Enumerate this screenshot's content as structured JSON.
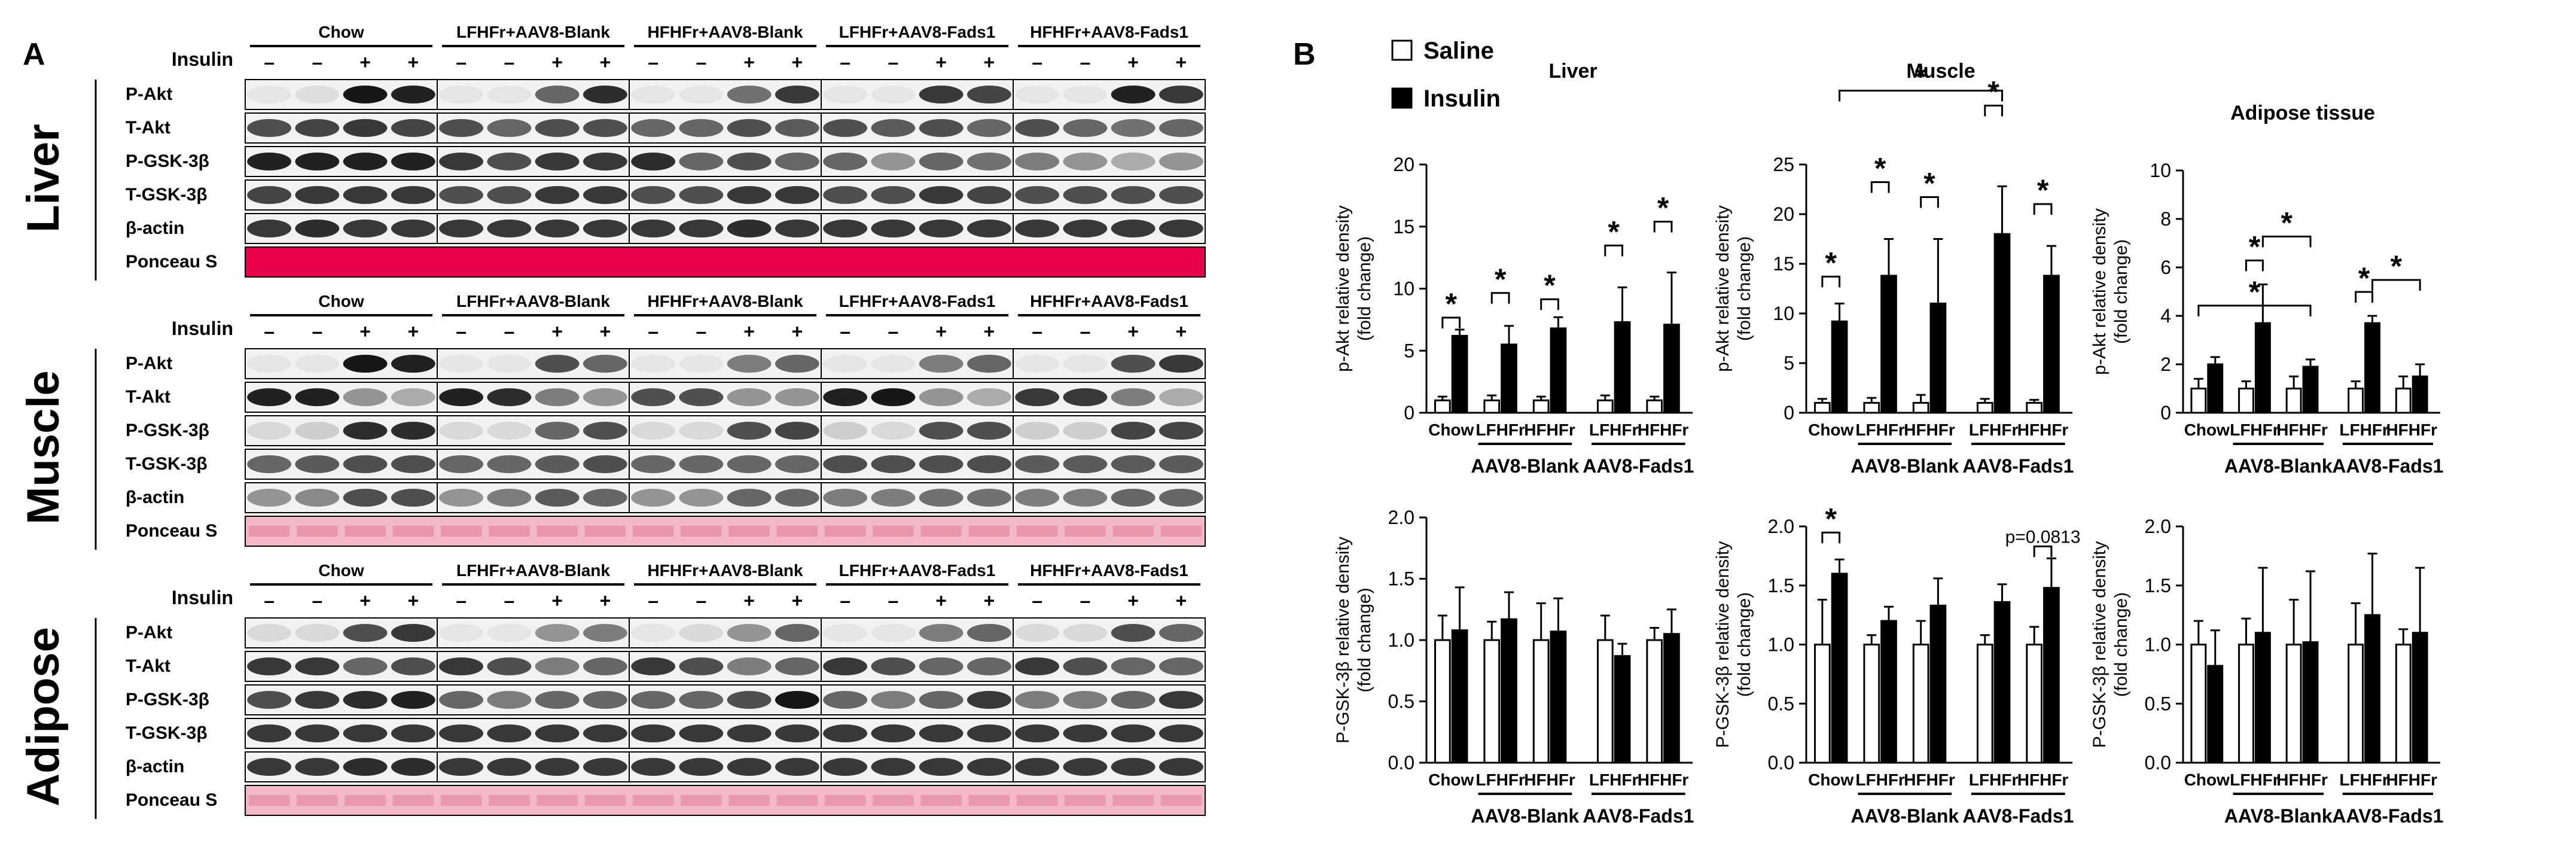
{
  "panelA": {
    "letter": "A",
    "insulin_label": "Insulin",
    "signs": [
      "–",
      "–",
      "+",
      "+",
      "–",
      "–",
      "+",
      "+",
      "–",
      "–",
      "+",
      "+",
      "–",
      "–",
      "+",
      "+",
      "–",
      "–",
      "+",
      "+"
    ],
    "groups": [
      "Chow",
      "LFHFr+AAV8-Blank",
      "HFHFr+AAV8-Blank",
      "LFHFr+AAV8-Fads1",
      "HFHFr+AAV8-Fads1"
    ],
    "ponceau_color": "#e8004a",
    "tissues": [
      {
        "name": "Liver",
        "bands": [
          "P-Akt",
          "T-Akt",
          "P-GSK-3β",
          "T-GSK-3β",
          "β-actin",
          "Ponceau S"
        ],
        "intensities": [
          [
            0.05,
            0.08,
            0.95,
            0.9,
            0.05,
            0.05,
            0.6,
            0.85,
            0.05,
            0.05,
            0.55,
            0.8,
            0.05,
            0.05,
            0.8,
            0.75,
            0.05,
            0.05,
            0.9,
            0.8
          ],
          [
            0.7,
            0.75,
            0.8,
            0.75,
            0.7,
            0.6,
            0.7,
            0.7,
            0.6,
            0.6,
            0.7,
            0.65,
            0.7,
            0.65,
            0.7,
            0.6,
            0.7,
            0.6,
            0.55,
            0.6
          ],
          [
            0.9,
            0.9,
            0.9,
            0.9,
            0.8,
            0.7,
            0.8,
            0.8,
            0.85,
            0.6,
            0.7,
            0.6,
            0.6,
            0.4,
            0.6,
            0.55,
            0.5,
            0.4,
            0.3,
            0.4
          ],
          [
            0.75,
            0.8,
            0.8,
            0.8,
            0.7,
            0.7,
            0.8,
            0.8,
            0.7,
            0.7,
            0.8,
            0.8,
            0.7,
            0.7,
            0.8,
            0.75,
            0.7,
            0.7,
            0.7,
            0.7
          ],
          [
            0.8,
            0.85,
            0.8,
            0.8,
            0.8,
            0.8,
            0.8,
            0.8,
            0.8,
            0.8,
            0.85,
            0.8,
            0.8,
            0.8,
            0.8,
            0.8,
            0.8,
            0.8,
            0.8,
            0.8
          ],
          [
            1,
            1,
            1,
            1,
            1,
            1,
            1,
            1,
            1,
            1,
            1,
            1,
            1,
            1,
            1,
            1,
            1,
            1,
            1,
            1
          ]
        ]
      },
      {
        "name": "Muscle",
        "bands": [
          "P-Akt",
          "T-Akt",
          "P-GSK-3β",
          "T-GSK-3β",
          "β-actin",
          "Ponceau S"
        ],
        "intensities": [
          [
            0.05,
            0.05,
            0.95,
            0.9,
            0.05,
            0.05,
            0.7,
            0.6,
            0.05,
            0.05,
            0.5,
            0.6,
            0.05,
            0.05,
            0.5,
            0.6,
            0.05,
            0.05,
            0.7,
            0.8
          ],
          [
            0.9,
            0.9,
            0.4,
            0.3,
            0.9,
            0.85,
            0.5,
            0.4,
            0.7,
            0.7,
            0.4,
            0.4,
            0.9,
            0.95,
            0.4,
            0.3,
            0.8,
            0.8,
            0.5,
            0.3
          ],
          [
            0.1,
            0.15,
            0.85,
            0.85,
            0.1,
            0.1,
            0.6,
            0.7,
            0.1,
            0.1,
            0.7,
            0.75,
            0.15,
            0.1,
            0.7,
            0.7,
            0.15,
            0.15,
            0.75,
            0.75
          ],
          [
            0.6,
            0.65,
            0.7,
            0.7,
            0.6,
            0.6,
            0.65,
            0.7,
            0.6,
            0.6,
            0.6,
            0.6,
            0.7,
            0.7,
            0.7,
            0.7,
            0.65,
            0.65,
            0.65,
            0.65
          ],
          [
            0.4,
            0.45,
            0.7,
            0.7,
            0.4,
            0.5,
            0.65,
            0.6,
            0.4,
            0.4,
            0.6,
            0.6,
            0.5,
            0.5,
            0.55,
            0.55,
            0.5,
            0.5,
            0.6,
            0.6
          ],
          [
            0.55,
            0.55,
            0.55,
            0.55,
            0.55,
            0.55,
            0.55,
            0.55,
            0.55,
            0.55,
            0.55,
            0.55,
            0.55,
            0.55,
            0.55,
            0.55,
            0.55,
            0.55,
            0.55,
            0.55
          ]
        ]
      },
      {
        "name": "Adipose",
        "bands": [
          "P-Akt",
          "T-Akt",
          "P-GSK-3β",
          "T-GSK-3β",
          "β-actin",
          "Ponceau S"
        ],
        "intensities": [
          [
            0.1,
            0.1,
            0.7,
            0.8,
            0.05,
            0.05,
            0.4,
            0.5,
            0.05,
            0.1,
            0.4,
            0.6,
            0.05,
            0.05,
            0.5,
            0.6,
            0.1,
            0.1,
            0.7,
            0.6
          ],
          [
            0.8,
            0.8,
            0.6,
            0.7,
            0.8,
            0.7,
            0.5,
            0.6,
            0.8,
            0.7,
            0.5,
            0.6,
            0.8,
            0.7,
            0.6,
            0.6,
            0.8,
            0.7,
            0.6,
            0.6
          ],
          [
            0.7,
            0.8,
            0.85,
            0.9,
            0.6,
            0.5,
            0.6,
            0.6,
            0.6,
            0.6,
            0.7,
            0.95,
            0.6,
            0.5,
            0.6,
            0.8,
            0.5,
            0.5,
            0.6,
            0.8
          ],
          [
            0.8,
            0.8,
            0.8,
            0.8,
            0.8,
            0.8,
            0.8,
            0.8,
            0.8,
            0.8,
            0.8,
            0.8,
            0.8,
            0.8,
            0.8,
            0.8,
            0.8,
            0.8,
            0.8,
            0.8
          ],
          [
            0.8,
            0.8,
            0.85,
            0.85,
            0.8,
            0.8,
            0.8,
            0.8,
            0.8,
            0.8,
            0.8,
            0.8,
            0.8,
            0.8,
            0.8,
            0.8,
            0.8,
            0.8,
            0.8,
            0.8
          ],
          [
            0.5,
            0.5,
            0.5,
            0.5,
            0.5,
            0.5,
            0.5,
            0.5,
            0.5,
            0.5,
            0.5,
            0.5,
            0.5,
            0.5,
            0.5,
            0.5,
            0.5,
            0.5,
            0.5,
            0.5
          ]
        ]
      }
    ]
  },
  "panelB": {
    "letter": "B",
    "legend": [
      {
        "label": "Saline",
        "fill": "#ffffff"
      },
      {
        "label": "Insulin",
        "fill": "#000000"
      }
    ]
  },
  "chart_data": [
    {
      "type": "bar",
      "title": "Liver",
      "ylabel": "p-Akt relative density (fold change)",
      "ylim": [
        0,
        20
      ],
      "yticks": [
        0,
        5,
        10,
        15,
        20
      ],
      "categories": [
        "Chow",
        "LFHFr",
        "HFHFr",
        "LFHFr",
        "HFHFr"
      ],
      "group_labels": [
        "AAV8-Blank",
        "AAV8-Fads1"
      ],
      "series": [
        {
          "name": "Saline",
          "values": [
            1.0,
            1.0,
            1.0,
            1.0,
            1.0
          ],
          "err": [
            0.3,
            0.4,
            0.3,
            0.4,
            0.3
          ]
        },
        {
          "name": "Insulin",
          "values": [
            6.2,
            5.5,
            6.8,
            7.3,
            7.1
          ],
          "err": [
            0.5,
            1.5,
            0.9,
            2.8,
            4.2
          ]
        }
      ],
      "annotations": [
        "*",
        "*",
        "*",
        "*",
        "*"
      ]
    },
    {
      "type": "bar",
      "title": "Muscle",
      "ylabel": "p-Akt relative density (fold change)",
      "ylim": [
        0,
        25
      ],
      "yticks": [
        0,
        5,
        10,
        15,
        20,
        25
      ],
      "categories": [
        "Chow",
        "LFHFr",
        "HFHFr",
        "LFHFr",
        "HFHFr"
      ],
      "group_labels": [
        "AAV8-Blank",
        "AAV8-Fads1"
      ],
      "series": [
        {
          "name": "Saline",
          "values": [
            1.0,
            1.0,
            1.0,
            1.0,
            1.0
          ],
          "err": [
            0.4,
            0.5,
            0.8,
            0.4,
            0.3
          ]
        },
        {
          "name": "Insulin",
          "values": [
            9.2,
            13.8,
            11.0,
            18.0,
            13.8
          ],
          "err": [
            1.8,
            3.7,
            6.5,
            4.8,
            3.0
          ]
        }
      ],
      "annotations": [
        "*",
        "*",
        "*",
        "*",
        "*",
        "*"
      ]
    },
    {
      "type": "bar",
      "title": "Adipose tissue",
      "ylabel": "p-Akt relative density (fold change)",
      "ylim": [
        0,
        10
      ],
      "yticks": [
        0,
        2,
        4,
        6,
        8,
        10
      ],
      "categories": [
        "Chow",
        "LFHFr",
        "HFHFr",
        "LFHFr",
        "HFHFr"
      ],
      "group_labels": [
        "AAV8-Blank",
        "AAV8-Fads1"
      ],
      "series": [
        {
          "name": "Saline",
          "values": [
            1.0,
            1.0,
            1.0,
            1.0,
            1.0
          ],
          "err": [
            0.4,
            0.3,
            0.5,
            0.3,
            0.5
          ]
        },
        {
          "name": "Insulin",
          "values": [
            2.0,
            3.7,
            1.9,
            3.7,
            1.5
          ],
          "err": [
            0.3,
            1.6,
            0.3,
            0.3,
            0.5
          ]
        }
      ],
      "annotations": [
        "*",
        "*",
        "*",
        "*",
        "*"
      ]
    },
    {
      "type": "bar",
      "title": "",
      "ylabel": "P-GSK-3β relative density (fold change)",
      "ylim": [
        0,
        2.0
      ],
      "yticks": [
        "0.0",
        "0.5",
        "1.0",
        "1.5",
        "2.0"
      ],
      "categories": [
        "Chow",
        "LFHFr",
        "HFHFr",
        "LFHFr",
        "HFHFr"
      ],
      "group_labels": [
        "AAV8-Blank",
        "AAV8-Fads1"
      ],
      "series": [
        {
          "name": "Saline",
          "values": [
            1.0,
            1.0,
            1.0,
            1.0,
            1.0
          ],
          "err": [
            0.2,
            0.15,
            0.3,
            0.2,
            0.1
          ]
        },
        {
          "name": "Insulin",
          "values": [
            1.08,
            1.17,
            1.07,
            0.87,
            1.05
          ],
          "err": [
            0.35,
            0.22,
            0.27,
            0.1,
            0.2
          ]
        }
      ],
      "annotations": []
    },
    {
      "type": "bar",
      "title": "",
      "ylabel": "P-GSK-3β relative density (fold change)",
      "ylim": [
        0,
        2.0
      ],
      "yticks": [
        "0.0",
        "0.5",
        "1.0",
        "1.5",
        "2.0"
      ],
      "categories": [
        "Chow",
        "LFHFr",
        "HFHFr",
        "LFHFr",
        "HFHFr"
      ],
      "group_labels": [
        "AAV8-Blank",
        "AAV8-Fads1"
      ],
      "series": [
        {
          "name": "Saline",
          "values": [
            1.0,
            1.0,
            1.0,
            1.0,
            1.0
          ],
          "err": [
            0.38,
            0.08,
            0.2,
            0.08,
            0.15
          ]
        },
        {
          "name": "Insulin",
          "values": [
            1.6,
            1.2,
            1.33,
            1.36,
            1.48
          ],
          "err": [
            0.12,
            0.12,
            0.23,
            0.15,
            0.25
          ]
        }
      ],
      "annotations": [
        "*",
        "p=0.0813"
      ]
    },
    {
      "type": "bar",
      "title": "",
      "ylabel": "P-GSK-3β relative density (fold change)",
      "ylim": [
        0,
        2.0
      ],
      "yticks": [
        "0.0",
        "0.5",
        "1.0",
        "1.5",
        "2.0"
      ],
      "categories": [
        "Chow",
        "LFHFr",
        "HFHFr",
        "LFHFr",
        "HFHFr"
      ],
      "group_labels": [
        "AAV8-Blank",
        "AAV8-Fads1"
      ],
      "series": [
        {
          "name": "Saline",
          "values": [
            1.0,
            1.0,
            1.0,
            1.0,
            1.0
          ],
          "err": [
            0.2,
            0.22,
            0.38,
            0.35,
            0.13
          ]
        },
        {
          "name": "Insulin",
          "values": [
            0.82,
            1.1,
            1.02,
            1.25,
            1.1
          ],
          "err": [
            0.3,
            0.55,
            0.6,
            0.52,
            0.55
          ]
        }
      ],
      "annotations": []
    }
  ]
}
